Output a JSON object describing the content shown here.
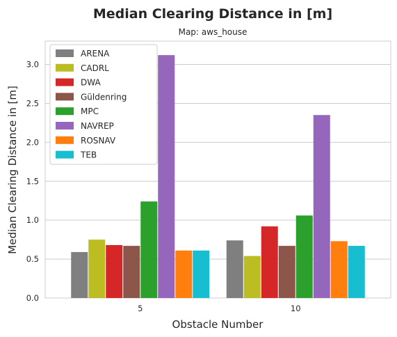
{
  "chart_data": {
    "type": "bar",
    "title": "Median Clearing Distance in [m]",
    "subtitle": "Map: aws_house",
    "xlabel": "Obstacle Number",
    "ylabel": "Median Clearing Distance in [m]",
    "categories": [
      "5",
      "10"
    ],
    "ylim": [
      0,
      3.3
    ],
    "yticks": [
      "0.0",
      "0.5",
      "1.0",
      "1.5",
      "2.0",
      "2.5",
      "3.0"
    ],
    "grid": true,
    "legend_position": "top-left",
    "series": [
      {
        "name": "ARENA",
        "color": "#7f7f7f",
        "values": [
          0.59,
          0.74
        ]
      },
      {
        "name": "CADRL",
        "color": "#bcbd22",
        "values": [
          0.75,
          0.54
        ]
      },
      {
        "name": "DWA",
        "color": "#d62728",
        "values": [
          0.68,
          0.92
        ]
      },
      {
        "name": "Güldenring",
        "color": "#8c564b",
        "values": [
          0.67,
          0.67
        ]
      },
      {
        "name": "MPC",
        "color": "#2ca02c",
        "values": [
          1.24,
          1.06
        ]
      },
      {
        "name": "NAVREP",
        "color": "#9467bd",
        "values": [
          3.12,
          2.35
        ]
      },
      {
        "name": "ROSNAV",
        "color": "#ff7f0e",
        "values": [
          0.61,
          0.73
        ]
      },
      {
        "name": "TEB",
        "color": "#17becf",
        "values": [
          0.61,
          0.67
        ]
      }
    ]
  }
}
